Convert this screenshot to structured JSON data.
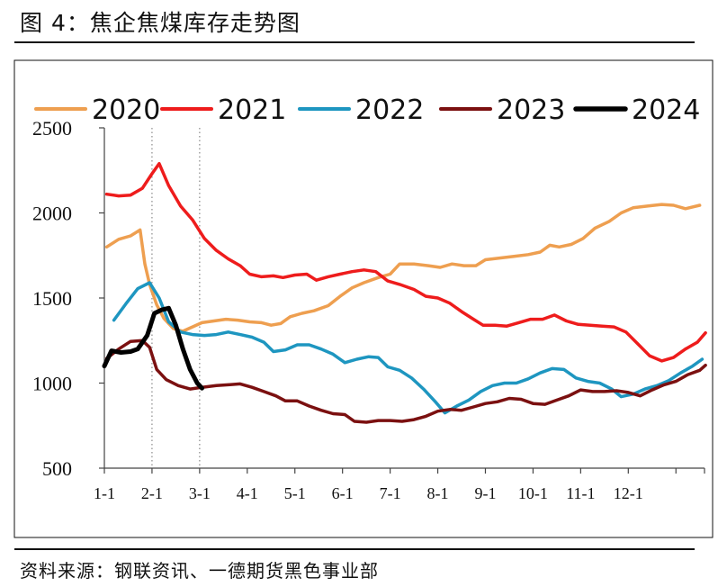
{
  "figure": {
    "title": "图 4：焦企焦煤库存走势图",
    "source": "资料来源：钢联资讯、一德期货黑色事业部"
  },
  "chart_data": {
    "type": "line",
    "title": "图 4：焦企焦煤库存走势图",
    "xlabel": "",
    "ylabel": "",
    "ylim": [
      500,
      2500
    ],
    "yticks": [
      500,
      1000,
      1500,
      2000,
      2500
    ],
    "xlim": [
      0,
      12.6
    ],
    "xticks": [
      {
        "pos": 0,
        "label": "1-1"
      },
      {
        "pos": 1,
        "label": "2-1"
      },
      {
        "pos": 2,
        "label": "3-1"
      },
      {
        "pos": 3,
        "label": "4-1"
      },
      {
        "pos": 4,
        "label": "5-1"
      },
      {
        "pos": 5,
        "label": "6-1"
      },
      {
        "pos": 6,
        "label": "7-1"
      },
      {
        "pos": 7,
        "label": "8-1"
      },
      {
        "pos": 8,
        "label": "9-1"
      },
      {
        "pos": 9,
        "label": "10-1"
      },
      {
        "pos": 10,
        "label": "11-1"
      },
      {
        "pos": 11,
        "label": "12-1"
      }
    ],
    "vertical_gridlines": [
      1,
      2
    ],
    "legend_position": "top",
    "series": [
      {
        "name": "2020",
        "color": "#ee9f50",
        "width": 3.5,
        "points": [
          [
            0.05,
            1800
          ],
          [
            0.3,
            1845
          ],
          [
            0.55,
            1865
          ],
          [
            0.75,
            1900
          ],
          [
            0.85,
            1700
          ],
          [
            0.95,
            1580
          ],
          [
            1.1,
            1460
          ],
          [
            1.25,
            1380
          ],
          [
            1.45,
            1320
          ],
          [
            1.65,
            1305
          ],
          [
            1.85,
            1330
          ],
          [
            2.05,
            1355
          ],
          [
            2.3,
            1365
          ],
          [
            2.55,
            1375
          ],
          [
            2.8,
            1370
          ],
          [
            3.05,
            1360
          ],
          [
            3.3,
            1355
          ],
          [
            3.5,
            1340
          ],
          [
            3.7,
            1350
          ],
          [
            3.9,
            1390
          ],
          [
            4.15,
            1410
          ],
          [
            4.4,
            1425
          ],
          [
            4.7,
            1455
          ],
          [
            4.95,
            1510
          ],
          [
            5.2,
            1560
          ],
          [
            5.45,
            1590
          ],
          [
            5.75,
            1620
          ],
          [
            6.0,
            1640
          ],
          [
            6.2,
            1700
          ],
          [
            6.5,
            1700
          ],
          [
            6.8,
            1690
          ],
          [
            7.05,
            1680
          ],
          [
            7.3,
            1700
          ],
          [
            7.55,
            1690
          ],
          [
            7.8,
            1690
          ],
          [
            8.0,
            1725
          ],
          [
            8.3,
            1735
          ],
          [
            8.6,
            1745
          ],
          [
            8.9,
            1755
          ],
          [
            9.15,
            1770
          ],
          [
            9.35,
            1810
          ],
          [
            9.55,
            1800
          ],
          [
            9.8,
            1815
          ],
          [
            10.05,
            1850
          ],
          [
            10.3,
            1910
          ],
          [
            10.6,
            1950
          ],
          [
            10.85,
            2000
          ],
          [
            11.1,
            2030
          ],
          [
            11.4,
            2040
          ],
          [
            11.7,
            2050
          ],
          [
            11.95,
            2045
          ],
          [
            12.2,
            2025
          ],
          [
            12.5,
            2045
          ]
        ]
      },
      {
        "name": "2021",
        "color": "#ee1c1c",
        "width": 3.5,
        "points": [
          [
            0.05,
            2110
          ],
          [
            0.3,
            2100
          ],
          [
            0.55,
            2105
          ],
          [
            0.8,
            2145
          ],
          [
            1.0,
            2230
          ],
          [
            1.15,
            2290
          ],
          [
            1.35,
            2160
          ],
          [
            1.6,
            2040
          ],
          [
            1.85,
            1960
          ],
          [
            2.1,
            1850
          ],
          [
            2.35,
            1780
          ],
          [
            2.6,
            1730
          ],
          [
            2.85,
            1690
          ],
          [
            3.05,
            1640
          ],
          [
            3.3,
            1625
          ],
          [
            3.55,
            1630
          ],
          [
            3.75,
            1620
          ],
          [
            4.0,
            1635
          ],
          [
            4.25,
            1640
          ],
          [
            4.45,
            1605
          ],
          [
            4.7,
            1625
          ],
          [
            4.95,
            1640
          ],
          [
            5.2,
            1655
          ],
          [
            5.45,
            1665
          ],
          [
            5.7,
            1655
          ],
          [
            5.95,
            1600
          ],
          [
            6.2,
            1580
          ],
          [
            6.5,
            1550
          ],
          [
            6.75,
            1510
          ],
          [
            7.0,
            1500
          ],
          [
            7.25,
            1470
          ],
          [
            7.5,
            1420
          ],
          [
            7.75,
            1375
          ],
          [
            7.95,
            1340
          ],
          [
            8.2,
            1340
          ],
          [
            8.45,
            1335
          ],
          [
            8.7,
            1355
          ],
          [
            8.95,
            1375
          ],
          [
            9.2,
            1375
          ],
          [
            9.45,
            1400
          ],
          [
            9.7,
            1365
          ],
          [
            9.95,
            1345
          ],
          [
            10.2,
            1340
          ],
          [
            10.45,
            1335
          ],
          [
            10.7,
            1330
          ],
          [
            10.95,
            1300
          ],
          [
            11.2,
            1230
          ],
          [
            11.45,
            1160
          ],
          [
            11.7,
            1130
          ],
          [
            11.95,
            1150
          ],
          [
            12.2,
            1200
          ],
          [
            12.45,
            1240
          ],
          [
            12.62,
            1295
          ]
        ]
      },
      {
        "name": "2022",
        "color": "#1e96c0",
        "width": 3.5,
        "points": [
          [
            0.2,
            1370
          ],
          [
            0.45,
            1465
          ],
          [
            0.7,
            1555
          ],
          [
            0.95,
            1590
          ],
          [
            1.15,
            1500
          ],
          [
            1.35,
            1360
          ],
          [
            1.6,
            1300
          ],
          [
            1.85,
            1285
          ],
          [
            2.1,
            1280
          ],
          [
            2.35,
            1285
          ],
          [
            2.6,
            1300
          ],
          [
            2.85,
            1285
          ],
          [
            3.1,
            1270
          ],
          [
            3.35,
            1240
          ],
          [
            3.55,
            1185
          ],
          [
            3.8,
            1195
          ],
          [
            4.05,
            1225
          ],
          [
            4.3,
            1225
          ],
          [
            4.55,
            1200
          ],
          [
            4.8,
            1170
          ],
          [
            5.05,
            1120
          ],
          [
            5.3,
            1140
          ],
          [
            5.55,
            1155
          ],
          [
            5.75,
            1150
          ],
          [
            5.95,
            1095
          ],
          [
            6.2,
            1075
          ],
          [
            6.45,
            1030
          ],
          [
            6.7,
            965
          ],
          [
            6.95,
            890
          ],
          [
            7.15,
            825
          ],
          [
            7.4,
            865
          ],
          [
            7.65,
            900
          ],
          [
            7.9,
            950
          ],
          [
            8.15,
            985
          ],
          [
            8.4,
            1000
          ],
          [
            8.65,
            1000
          ],
          [
            8.9,
            1025
          ],
          [
            9.15,
            1060
          ],
          [
            9.4,
            1085
          ],
          [
            9.65,
            1080
          ],
          [
            9.9,
            1030
          ],
          [
            10.15,
            1010
          ],
          [
            10.4,
            1000
          ],
          [
            10.65,
            965
          ],
          [
            10.85,
            920
          ],
          [
            11.1,
            935
          ],
          [
            11.35,
            965
          ],
          [
            11.6,
            985
          ],
          [
            11.85,
            1015
          ],
          [
            12.1,
            1060
          ],
          [
            12.35,
            1100
          ],
          [
            12.55,
            1140
          ]
        ]
      },
      {
        "name": "2023",
        "color": "#7b1010",
        "width": 3.5,
        "points": [
          [
            0.05,
            1145
          ],
          [
            0.3,
            1200
          ],
          [
            0.55,
            1245
          ],
          [
            0.8,
            1250
          ],
          [
            0.95,
            1210
          ],
          [
            1.1,
            1080
          ],
          [
            1.3,
            1020
          ],
          [
            1.55,
            985
          ],
          [
            1.8,
            965
          ],
          [
            2.05,
            975
          ],
          [
            2.35,
            985
          ],
          [
            2.6,
            990
          ],
          [
            2.85,
            995
          ],
          [
            3.1,
            975
          ],
          [
            3.35,
            950
          ],
          [
            3.6,
            925
          ],
          [
            3.8,
            895
          ],
          [
            4.05,
            895
          ],
          [
            4.3,
            865
          ],
          [
            4.55,
            840
          ],
          [
            4.8,
            820
          ],
          [
            5.05,
            815
          ],
          [
            5.25,
            775
          ],
          [
            5.5,
            770
          ],
          [
            5.75,
            780
          ],
          [
            6.0,
            780
          ],
          [
            6.25,
            775
          ],
          [
            6.5,
            785
          ],
          [
            6.75,
            805
          ],
          [
            7.0,
            835
          ],
          [
            7.25,
            845
          ],
          [
            7.5,
            840
          ],
          [
            7.75,
            860
          ],
          [
            8.0,
            880
          ],
          [
            8.25,
            890
          ],
          [
            8.5,
            910
          ],
          [
            8.75,
            905
          ],
          [
            9.0,
            880
          ],
          [
            9.25,
            875
          ],
          [
            9.5,
            900
          ],
          [
            9.75,
            925
          ],
          [
            10.0,
            960
          ],
          [
            10.25,
            950
          ],
          [
            10.5,
            950
          ],
          [
            10.75,
            955
          ],
          [
            11.0,
            945
          ],
          [
            11.25,
            925
          ],
          [
            11.5,
            960
          ],
          [
            11.75,
            990
          ],
          [
            12.0,
            1010
          ],
          [
            12.25,
            1050
          ],
          [
            12.5,
            1075
          ],
          [
            12.62,
            1105
          ]
        ]
      },
      {
        "name": "2024",
        "color": "#000000",
        "width": 5,
        "points": [
          [
            0.0,
            1100
          ],
          [
            0.15,
            1190
          ],
          [
            0.35,
            1180
          ],
          [
            0.55,
            1185
          ],
          [
            0.7,
            1200
          ],
          [
            0.9,
            1280
          ],
          [
            1.05,
            1410
          ],
          [
            1.2,
            1430
          ],
          [
            1.35,
            1440
          ],
          [
            1.5,
            1340
          ],
          [
            1.65,
            1200
          ],
          [
            1.8,
            1080
          ],
          [
            1.95,
            1000
          ],
          [
            2.05,
            970
          ]
        ]
      }
    ]
  }
}
